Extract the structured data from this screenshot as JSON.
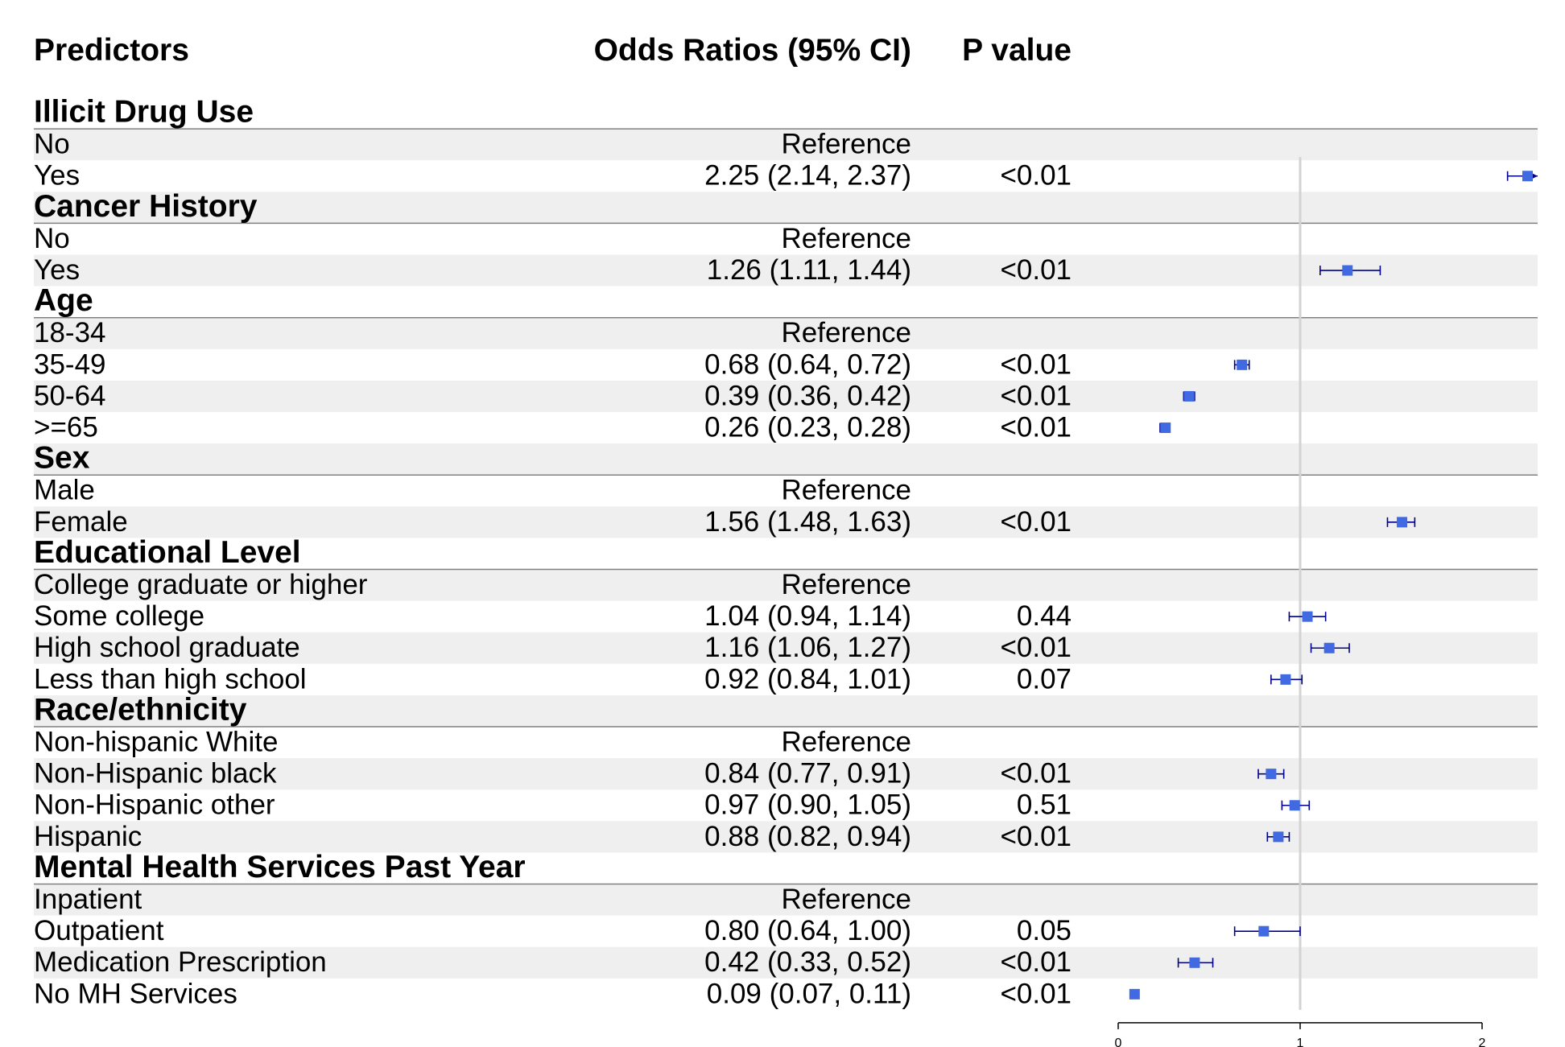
{
  "headers": {
    "predictors": "Predictors",
    "odds_ratio": "Odds Ratios (95% CI)",
    "p_value": "P value"
  },
  "reference_text": "Reference",
  "colors": {
    "marker": "#4169E1",
    "ci_line": "#00008B",
    "null_line": "#D3D3D3",
    "band": "#EFEFEF",
    "rule": "#808080"
  },
  "chart_data": {
    "type": "forest",
    "x_axis": {
      "range": [
        0,
        2
      ],
      "ticks": [
        "0",
        "1",
        "2"
      ],
      "null_value": 1
    },
    "rows": [
      {
        "kind": "group",
        "label": "Illicit Drug Use"
      },
      {
        "kind": "item",
        "label": "No",
        "ref": true
      },
      {
        "kind": "item",
        "label": "Yes",
        "or_text": "2.25 (2.14, 2.37)",
        "p": "<0.01",
        "or": 2.25,
        "lo": 2.14,
        "hi": 2.37
      },
      {
        "kind": "group",
        "label": "Cancer History"
      },
      {
        "kind": "item",
        "label": "No",
        "ref": true
      },
      {
        "kind": "item",
        "label": "Yes",
        "or_text": "1.26 (1.11, 1.44)",
        "p": "<0.01",
        "or": 1.26,
        "lo": 1.11,
        "hi": 1.44
      },
      {
        "kind": "group",
        "label": "Age"
      },
      {
        "kind": "item",
        "label": "18-34",
        "ref": true
      },
      {
        "kind": "item",
        "label": "35-49",
        "or_text": "0.68 (0.64, 0.72)",
        "p": "<0.01",
        "or": 0.68,
        "lo": 0.64,
        "hi": 0.72
      },
      {
        "kind": "item",
        "label": "50-64",
        "or_text": "0.39 (0.36, 0.42)",
        "p": "<0.01",
        "or": 0.39,
        "lo": 0.36,
        "hi": 0.42
      },
      {
        "kind": "item",
        "label": ">=65",
        "or_text": "0.26 (0.23, 0.28)",
        "p": "<0.01",
        "or": 0.26,
        "lo": 0.23,
        "hi": 0.28
      },
      {
        "kind": "group",
        "label": "Sex"
      },
      {
        "kind": "item",
        "label": "Male",
        "ref": true
      },
      {
        "kind": "item",
        "label": "Female",
        "or_text": "1.56 (1.48, 1.63)",
        "p": "<0.01",
        "or": 1.56,
        "lo": 1.48,
        "hi": 1.63
      },
      {
        "kind": "group",
        "label": "Educational Level"
      },
      {
        "kind": "item",
        "label": "College graduate or higher",
        "ref": true
      },
      {
        "kind": "item",
        "label": "Some college",
        "or_text": "1.04 (0.94, 1.14)",
        "p": "0.44",
        "or": 1.04,
        "lo": 0.94,
        "hi": 1.14
      },
      {
        "kind": "item",
        "label": "High school graduate",
        "or_text": "1.16 (1.06, 1.27)",
        "p": "<0.01",
        "or": 1.16,
        "lo": 1.06,
        "hi": 1.27
      },
      {
        "kind": "item",
        "label": "Less than high school",
        "or_text": "0.92 (0.84, 1.01)",
        "p": "0.07",
        "or": 0.92,
        "lo": 0.84,
        "hi": 1.01
      },
      {
        "kind": "group",
        "label": "Race/ethnicity"
      },
      {
        "kind": "item",
        "label": "Non-hispanic White",
        "ref": true
      },
      {
        "kind": "item",
        "label": "Non-Hispanic black",
        "or_text": "0.84 (0.77, 0.91)",
        "p": "<0.01",
        "or": 0.84,
        "lo": 0.77,
        "hi": 0.91
      },
      {
        "kind": "item",
        "label": "Non-Hispanic other",
        "or_text": "0.97 (0.90, 1.05)",
        "p": "0.51",
        "or": 0.97,
        "lo": 0.9,
        "hi": 1.05
      },
      {
        "kind": "item",
        "label": "Hispanic",
        "or_text": "0.88 (0.82, 0.94)",
        "p": "<0.01",
        "or": 0.88,
        "lo": 0.82,
        "hi": 0.94
      },
      {
        "kind": "group",
        "label": "Mental Health Services Past Year"
      },
      {
        "kind": "item",
        "label": "Inpatient",
        "ref": true
      },
      {
        "kind": "item",
        "label": "Outpatient",
        "or_text": "0.80 (0.64, 1.00)",
        "p": "0.05",
        "or": 0.8,
        "lo": 0.64,
        "hi": 1.0
      },
      {
        "kind": "item",
        "label": "Medication Prescription",
        "or_text": "0.42 (0.33, 0.52)",
        "p": "<0.01",
        "or": 0.42,
        "lo": 0.33,
        "hi": 0.52
      },
      {
        "kind": "item",
        "label": "No MH Services",
        "or_text": "0.09 (0.07, 0.11)",
        "p": "<0.01",
        "or": 0.09,
        "lo": 0.07,
        "hi": 0.11
      }
    ]
  }
}
